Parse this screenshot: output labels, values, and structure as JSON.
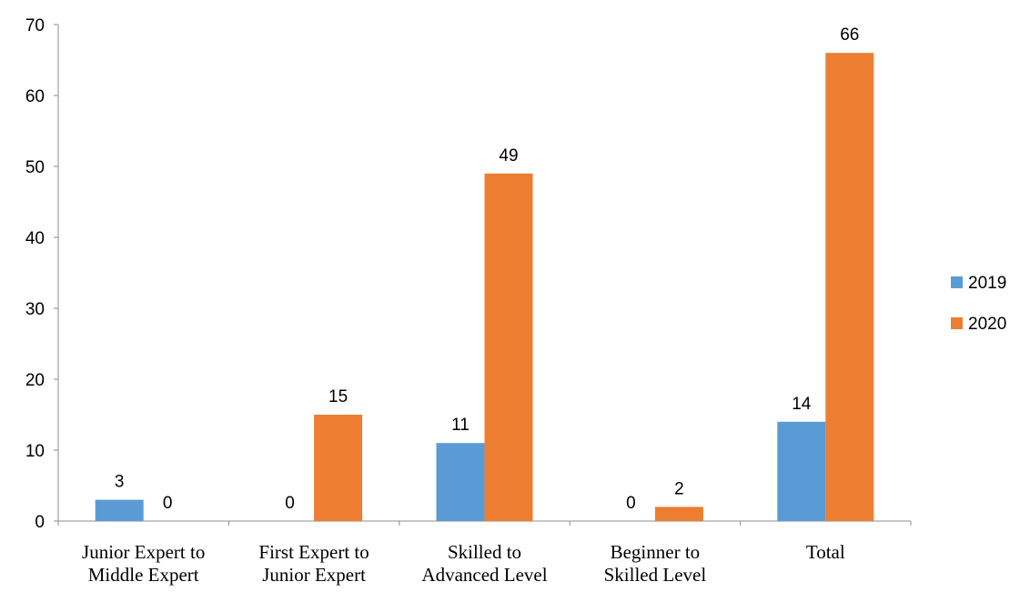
{
  "chart_data": {
    "type": "bar",
    "categories": [
      [
        "Junior Expert to",
        "Middle Expert"
      ],
      [
        "First Expert to",
        "Junior Expert"
      ],
      [
        "Skilled to",
        "Advanced Level"
      ],
      [
        "Beginner to",
        "Skilled Level"
      ],
      [
        "Total"
      ]
    ],
    "series": [
      {
        "name": "2019",
        "color": "#5b9bd5",
        "values": [
          3,
          0,
          11,
          0,
          14
        ]
      },
      {
        "name": "2020",
        "color": "#ed7d31",
        "values": [
          0,
          15,
          49,
          2,
          66
        ]
      }
    ],
    "yticks": [
      0,
      10,
      20,
      30,
      40,
      50,
      60,
      70
    ],
    "ylim": [
      0,
      70
    ],
    "grid": false,
    "legend_position": "right"
  }
}
